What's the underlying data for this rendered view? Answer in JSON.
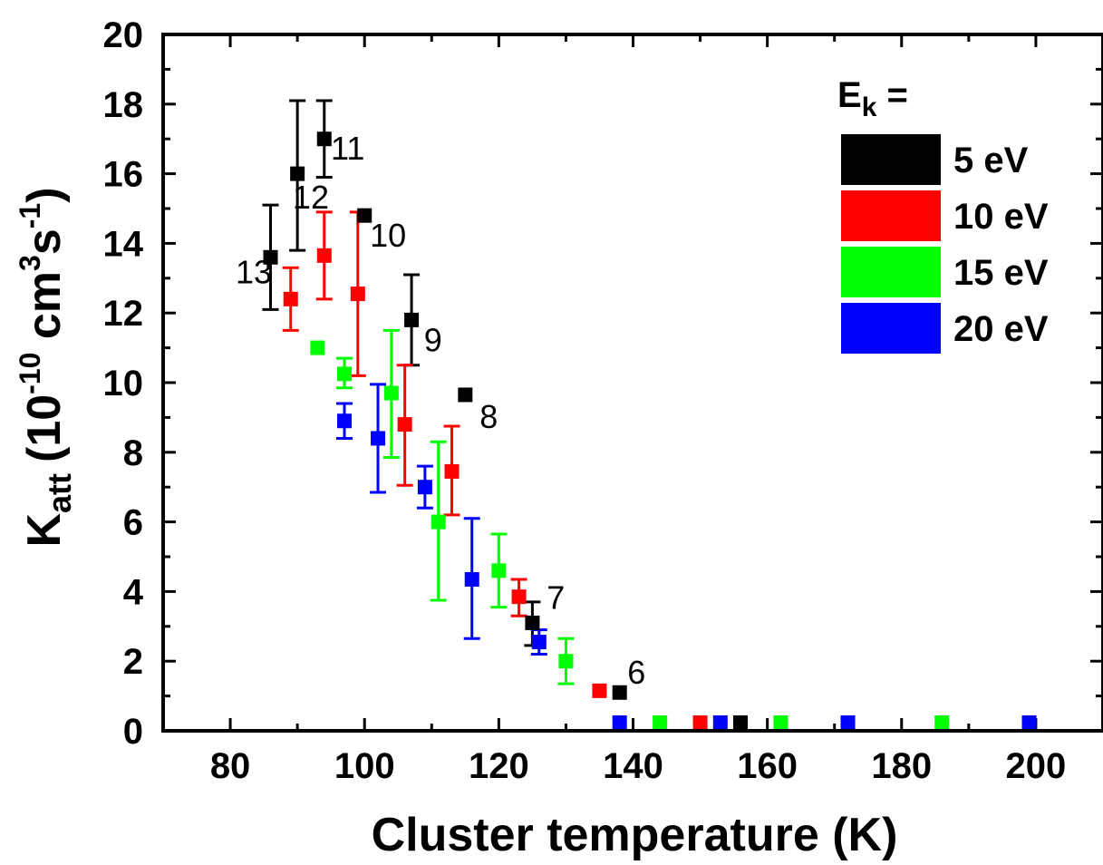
{
  "chart_data": {
    "type": "scatter",
    "xlabel": "Cluster temperature (K)",
    "ylabel": {
      "main": "K",
      "main_sub": "att",
      "paren_open": "(10",
      "exp1": "-10",
      "unit1": " cm",
      "exp2": "3",
      "unit2": "s",
      "exp3": "-1",
      "paren_close": ")"
    },
    "xlim": [
      70,
      210
    ],
    "ylim": [
      0,
      20
    ],
    "x_ticks": [
      80,
      100,
      120,
      140,
      160,
      180,
      200
    ],
    "y_ticks": [
      0,
      2,
      4,
      6,
      8,
      10,
      12,
      14,
      16,
      18,
      20
    ],
    "legend": {
      "title_main": "E",
      "title_sub": "k",
      "title_suffix": " =",
      "position": "top-right"
    },
    "series": [
      {
        "name": "5 eV",
        "color": "#000000",
        "points": [
          {
            "x": 86,
            "y": 13.6,
            "lo": 12.1,
            "hi": 15.1
          },
          {
            "x": 90,
            "y": 16.0,
            "lo": 13.8,
            "hi": 18.1
          },
          {
            "x": 94,
            "y": 17.0,
            "lo": 15.9,
            "hi": 18.1
          },
          {
            "x": 100,
            "y": 14.8
          },
          {
            "x": 107,
            "y": 11.8,
            "lo": 10.5,
            "hi": 13.1
          },
          {
            "x": 115,
            "y": 9.65
          },
          {
            "x": 125,
            "y": 3.1,
            "lo": 2.45,
            "hi": 3.7
          },
          {
            "x": 138,
            "y": 1.1
          },
          {
            "x": 156,
            "y": 0.0
          }
        ]
      },
      {
        "name": "10 eV",
        "color": "#ff0000",
        "points": [
          {
            "x": 89,
            "y": 12.4,
            "lo": 11.5,
            "hi": 13.3
          },
          {
            "x": 94,
            "y": 13.65,
            "lo": 12.4,
            "hi": 14.9
          },
          {
            "x": 99,
            "y": 12.55,
            "lo": 10.2,
            "hi": 14.9
          },
          {
            "x": 106,
            "y": 8.8,
            "lo": 7.05,
            "hi": 10.5
          },
          {
            "x": 113,
            "y": 7.45,
            "lo": 6.2,
            "hi": 8.75
          },
          {
            "x": 123,
            "y": 3.85,
            "lo": 3.3,
            "hi": 4.35
          },
          {
            "x": 135,
            "y": 1.15
          },
          {
            "x": 150,
            "y": 0.0
          }
        ]
      },
      {
        "name": "15 eV",
        "color": "#00ff00",
        "points": [
          {
            "x": 93,
            "y": 11.0
          },
          {
            "x": 97,
            "y": 10.25,
            "lo": 9.85,
            "hi": 10.7
          },
          {
            "x": 104,
            "y": 9.7,
            "lo": 7.85,
            "hi": 11.5
          },
          {
            "x": 111,
            "y": 6.0,
            "lo": 3.75,
            "hi": 8.3
          },
          {
            "x": 120,
            "y": 4.6,
            "lo": 3.55,
            "hi": 5.65
          },
          {
            "x": 130,
            "y": 2.0,
            "lo": 1.35,
            "hi": 2.65
          },
          {
            "x": 144,
            "y": 0.0
          },
          {
            "x": 162,
            "y": 0.0
          },
          {
            "x": 186,
            "y": 0.0
          }
        ]
      },
      {
        "name": "20 eV",
        "color": "#0000ff",
        "points": [
          {
            "x": 97,
            "y": 8.9,
            "lo": 8.4,
            "hi": 9.4
          },
          {
            "x": 102,
            "y": 8.4,
            "lo": 6.85,
            "hi": 9.95
          },
          {
            "x": 109,
            "y": 7.0,
            "lo": 6.4,
            "hi": 7.6
          },
          {
            "x": 116,
            "y": 4.35,
            "lo": 2.65,
            "hi": 6.1
          },
          {
            "x": 126,
            "y": 2.55,
            "lo": 2.2,
            "hi": 2.9
          },
          {
            "x": 138,
            "y": 0.0
          },
          {
            "x": 153,
            "y": 0.0
          },
          {
            "x": 172,
            "y": 0.0
          },
          {
            "x": 199,
            "y": 0.0
          }
        ]
      }
    ],
    "annotations": [
      {
        "text": "13",
        "x": 83.5,
        "y": 12.85
      },
      {
        "text": "12",
        "x": 92.0,
        "y": 15.0
      },
      {
        "text": "11",
        "x": 97.5,
        "y": 16.4
      },
      {
        "text": "10",
        "x": 103.5,
        "y": 13.9
      },
      {
        "text": "9",
        "x": 110.2,
        "y": 10.9
      },
      {
        "text": "8",
        "x": 118.5,
        "y": 8.7
      },
      {
        "text": "7",
        "x": 128.5,
        "y": 3.5
      },
      {
        "text": "6",
        "x": 140.5,
        "y": 1.35
      }
    ]
  }
}
